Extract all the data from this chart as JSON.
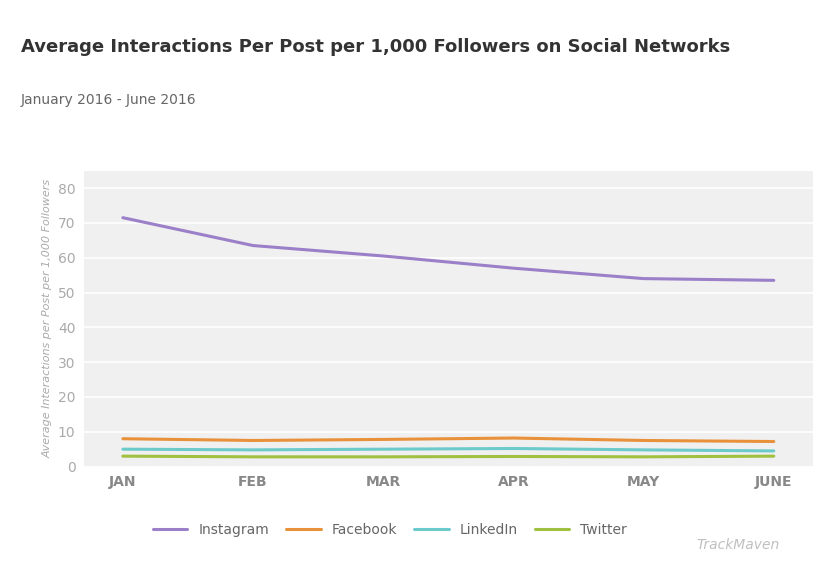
{
  "title": "Average Interactions Per Post per 1,000 Followers on Social Networks",
  "subtitle": "January 2016 - June 2016",
  "ylabel": "Average Interactions per Post per 1,000 Followers",
  "months": [
    "JAN",
    "FEB",
    "MAR",
    "APR",
    "MAY",
    "JUNE"
  ],
  "series": {
    "Instagram": [
      71.5,
      63.5,
      60.5,
      57.0,
      54.0,
      53.5
    ],
    "Facebook": [
      8.0,
      7.5,
      7.8,
      8.2,
      7.5,
      7.2
    ],
    "LinkedIn": [
      5.0,
      4.8,
      5.0,
      5.2,
      4.8,
      4.5
    ],
    "Twitter": [
      3.0,
      2.8,
      2.8,
      2.9,
      2.8,
      3.0
    ]
  },
  "colors": {
    "Instagram": "#9b7fc8",
    "Facebook": "#e8913a",
    "LinkedIn": "#6dcacb",
    "Twitter": "#a0c040"
  },
  "ylim": [
    0,
    85
  ],
  "yticks": [
    0,
    10,
    20,
    30,
    40,
    50,
    60,
    70,
    80
  ],
  "background_color": "#ffffff",
  "header_bg_color": "#ebebeb",
  "plot_bg_color": "#f0f0f0",
  "grid_color": "#ffffff",
  "title_fontsize": 13,
  "subtitle_fontsize": 10,
  "tick_fontsize": 10,
  "ylabel_fontsize": 8,
  "legend_fontsize": 10,
  "watermark": "TrackMaven",
  "line_width": 2.2
}
